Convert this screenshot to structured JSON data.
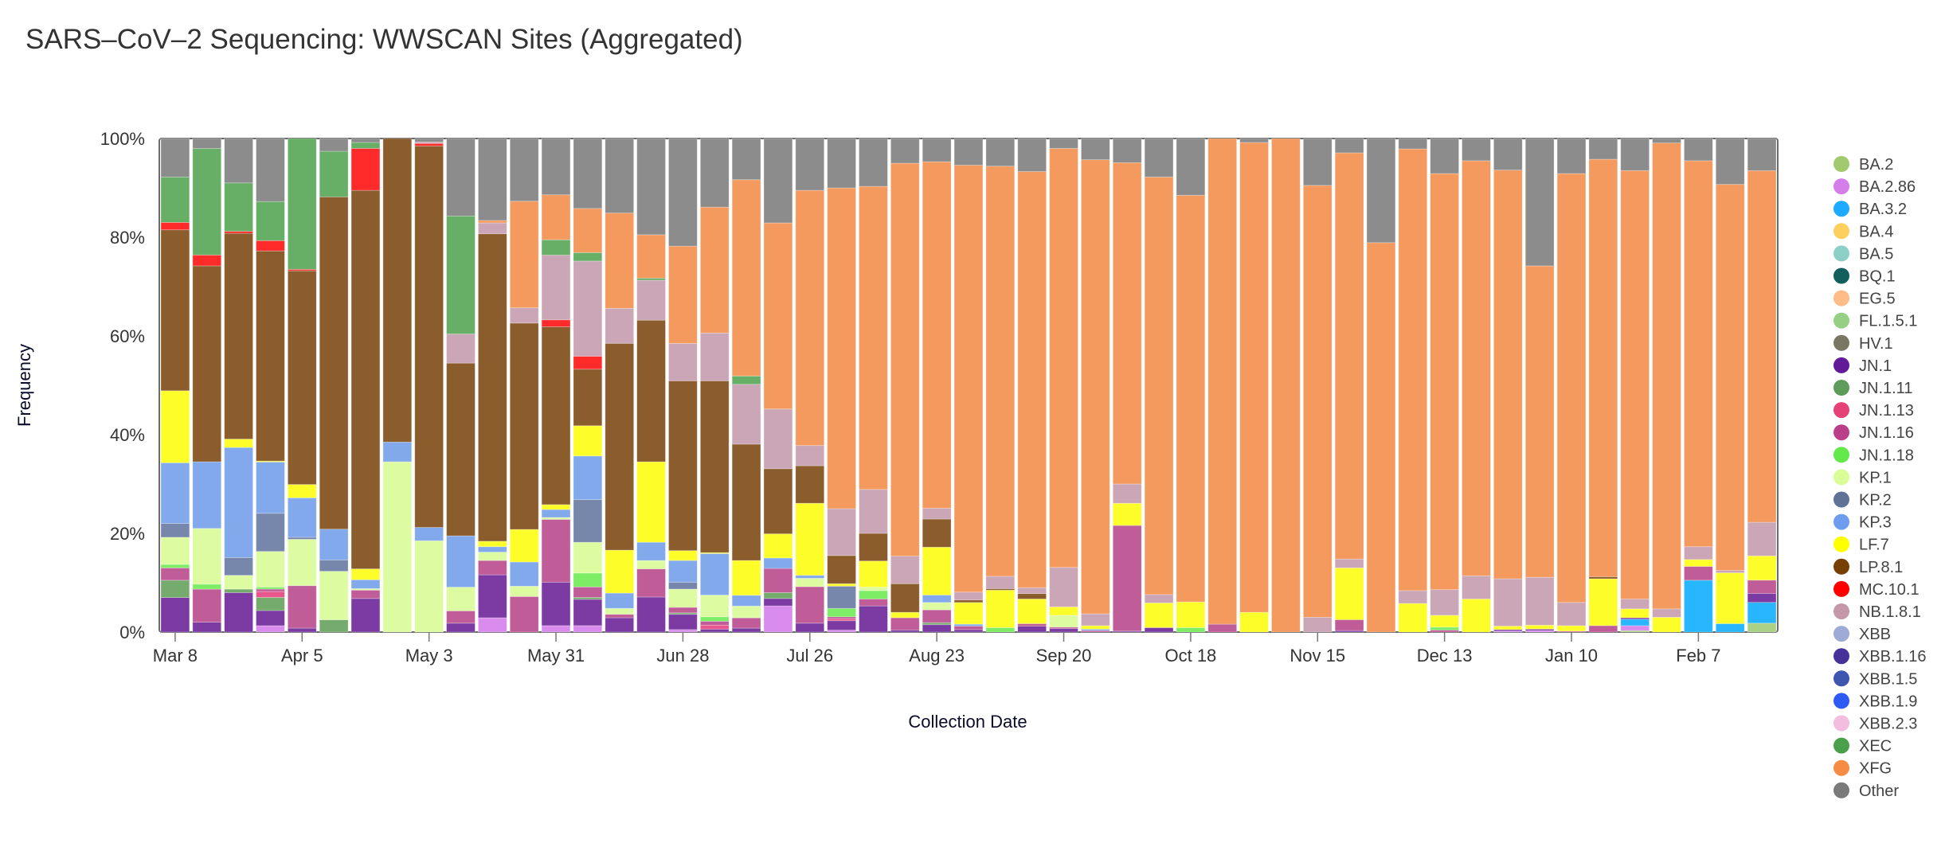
{
  "title": "SARS–CoV–2 Sequencing: WWSCAN Sites (Aggregated)",
  "chart_data": {
    "type": "bar",
    "stacked": true,
    "normalized": true,
    "title": "SARS–CoV–2 Sequencing: WWSCAN Sites (Aggregated)",
    "xlabel": "Collection Date",
    "ylabel": "Frequency",
    "ylim": [
      0,
      100
    ],
    "y_ticks": [
      "0%",
      "20%",
      "40%",
      "60%",
      "80%",
      "100%"
    ],
    "y_tick_values": [
      0,
      20,
      40,
      60,
      80,
      100
    ],
    "x_ticks": [
      "Mar 8",
      "Apr 5",
      "May 3",
      "May 31",
      "Jun 28",
      "Jul 26",
      "Aug 23",
      "Sep 20",
      "Oct 18",
      "Nov 15",
      "Dec 13",
      "Jan 10",
      "Feb 7"
    ],
    "x_tick_bar_index": [
      0,
      4,
      8,
      12,
      16,
      20,
      24,
      28,
      32,
      36,
      40,
      44,
      48
    ],
    "bar_count": 51,
    "legend_position": "right",
    "legend": [
      {
        "name": "BA.2",
        "color": "#a3c96e"
      },
      {
        "name": "BA.2.86",
        "color": "#d57eeb"
      },
      {
        "name": "BA.3.2",
        "color": "#1eaaff"
      },
      {
        "name": "BA.4",
        "color": "#fdd05e"
      },
      {
        "name": "BA.5",
        "color": "#8bcfc6"
      },
      {
        "name": "BQ.1",
        "color": "#135f5e"
      },
      {
        "name": "EG.5",
        "color": "#fdbb88"
      },
      {
        "name": "FL.1.5.1",
        "color": "#95d084"
      },
      {
        "name": "HV.1",
        "color": "#797764"
      },
      {
        "name": "JN.1",
        "color": "#631a99"
      },
      {
        "name": "JN.1.11",
        "color": "#5d9c59"
      },
      {
        "name": "JN.1.13",
        "color": "#e54378"
      },
      {
        "name": "JN.1.16",
        "color": "#b93f8a"
      },
      {
        "name": "JN.1.18",
        "color": "#63ea4a"
      },
      {
        "name": "KP.1",
        "color": "#dbfd97"
      },
      {
        "name": "KP.2",
        "color": "#5f7399"
      },
      {
        "name": "KP.3",
        "color": "#6e9def"
      },
      {
        "name": "LF.7",
        "color": "#ffff00"
      },
      {
        "name": "LP.8.1",
        "color": "#783f04"
      },
      {
        "name": "MC.10.1",
        "color": "#ff0000"
      },
      {
        "name": "NB.1.8.1",
        "color": "#c498a8"
      },
      {
        "name": "XBB",
        "color": "#9eabd6"
      },
      {
        "name": "XBB.1.16",
        "color": "#463199"
      },
      {
        "name": "XBB.1.5",
        "color": "#3f56b0"
      },
      {
        "name": "XBB.1.9",
        "color": "#2f5bf5"
      },
      {
        "name": "XBB.2.3",
        "color": "#f3bde0"
      },
      {
        "name": "XEC",
        "color": "#4aa04a"
      },
      {
        "name": "XFG",
        "color": "#f58b45"
      },
      {
        "name": "Other",
        "color": "#7a7a7a"
      }
    ],
    "bar_colors": {
      "BA.2": "#abd185",
      "BA.2.86": "#d98cee",
      "BA.3.2": "#27b6ff",
      "JN.1": "#7b3ba3",
      "JN.1.11": "#76ab6e",
      "JN.1.13": "#e8568c",
      "JN.1.16": "#c05c98",
      "JN.1.18": "#7ced64",
      "KP.1": "#ddfca2",
      "KP.2": "#7786ab",
      "KP.3": "#82a9eb",
      "LF.7": "#fdfd2a",
      "LP.8.1": "#8b5c2c",
      "MC.10.1": "#ff2b2b",
      "NB.1.8.1": "#cba6b7",
      "XEC": "#67ae66",
      "XFG": "#f59a5e",
      "Other": "#8c8c8c"
    },
    "series_order_bottom_to_top": [
      "BA.2",
      "BA.2.86",
      "BA.3.2",
      "JN.1",
      "JN.1.11",
      "JN.1.13",
      "JN.1.16",
      "JN.1.18",
      "KP.1",
      "KP.2",
      "KP.3",
      "LF.7",
      "LP.8.1",
      "MC.10.1",
      "NB.1.8.1",
      "XEC",
      "XFG",
      "Other"
    ],
    "bars": [
      {
        "JN.1": 7,
        "JN.1.11": 3.5,
        "JN.1.16": 2.5,
        "JN.1.18": 0.7,
        "KP.1": 5.5,
        "KP.2": 2.8,
        "KP.3": 12.3,
        "LF.7": 14.6,
        "LP.8.1": 32.6,
        "MC.10.1": 1.5,
        "XEC": 9.2,
        "Other": 7.8
      },
      {
        "JN.1": 2,
        "JN.1.16": 6.7,
        "JN.1.18": 1,
        "KP.1": 11.3,
        "KP.3": 13.5,
        "LP.8.1": 39.7,
        "MC.10.1": 2.2,
        "XEC": 21.6,
        "Other": 2
      },
      {
        "JN.1": 8,
        "JN.1.11": 0.7,
        "KP.1": 2.8,
        "KP.2": 3.6,
        "KP.3": 22.3,
        "LF.7": 1.7,
        "LP.8.1": 41.7,
        "MC.10.1": 0.4,
        "XEC": 9.8,
        "Other": 9
      },
      {
        "BA.2.86": 1.3,
        "JN.1": 3.1,
        "JN.1.11": 2.7,
        "JN.1.13": 1.2,
        "JN.1.16": 0.5,
        "JN.1.18": 0.4,
        "KP.1": 7.3,
        "KP.2": 7.8,
        "KP.3": 10.5,
        "LF.7": 0.2,
        "LP.8.1": 43,
        "MC.10.1": 2.1,
        "XEC": 8,
        "Other": 12.9
      },
      {
        "JN.1": 0.8,
        "JN.1.16": 8.6,
        "KP.1": 9.4,
        "KP.2": 0.4,
        "KP.3": 8,
        "LF.7": 2.7,
        "LP.8.1": 43.3,
        "MC.10.1": 0.3,
        "XEC": 26.5,
        "Other": 0
      },
      {
        "JN.1.11": 2.5,
        "KP.1": 9.9,
        "KP.2": 2.3,
        "KP.3": 6.3,
        "LP.8.1": 67.8,
        "XEC": 9.3,
        "Other": 2.6
      },
      {
        "JN.1": 6.8,
        "JN.1.16": 1.7,
        "KP.1": 0.3,
        "KP.3": 1.8,
        "LF.7": 2.2,
        "LP.8.1": 76.7,
        "MC.10.1": 8.5,
        "XEC": 1.2,
        "Other": 0.8
      },
      {
        "KP.1": 34.5,
        "KP.3": 4,
        "LP.8.1": 61.5
      },
      {
        "KP.1": 18.5,
        "KP.3": 2.7,
        "LP.8.1": 77.3,
        "MC.10.1": 0.5,
        "NB.1.8.1": 0.3,
        "Other": 0.7
      },
      {
        "JN.1": 1.8,
        "JN.1.16": 2.5,
        "KP.1": 4.8,
        "KP.3": 10.4,
        "LP.8.1": 35.0,
        "NB.1.8.1": 5.9,
        "XEC": 23.9,
        "Other": 15.7
      },
      {
        "BA.2.86": 2.9,
        "JN.1": 8.7,
        "JN.1.16": 2.9,
        "KP.1": 1.7,
        "KP.3": 1.1,
        "LF.7": 1.1,
        "LP.8.1": 62.3,
        "NB.1.8.1": 2.2,
        "XFG": 0.5,
        "Other": 16.6
      },
      {
        "JN.1.16": 7.2,
        "KP.1": 2.1,
        "KP.3": 4.9,
        "LF.7": 6.6,
        "LP.8.1": 41.8,
        "NB.1.8.1": 3.1,
        "XFG": 21.6,
        "Other": 12.7
      },
      {
        "BA.2.86": 1.3,
        "JN.1": 8.8,
        "JN.1.16": 12.7,
        "KP.1": 0.4,
        "KP.3": 1.6,
        "LF.7": 1.0,
        "LP.8.1": 36.0,
        "MC.10.1": 1.4,
        "NB.1.8.1": 13.1,
        "XEC": 3.1,
        "XFG": 9.1,
        "Other": 11.4
      },
      {
        "BA.2.86": 1.3,
        "JN.1": 5.3,
        "JN.1.11": 0.4,
        "JN.1.16": 2.1,
        "JN.1.18": 2.8,
        "KP.1": 6.2,
        "KP.2": 8.6,
        "KP.3": 8.8,
        "LF.7": 6.1,
        "LP.8.1": 11.4,
        "MC.10.1": 2.6,
        "NB.1.8.1": 19.2,
        "XEC": 1.7,
        "XFG": 8.9,
        "Other": 14.1
      },
      {
        "JN.1": 2.9,
        "JN.1.16": 0.7,
        "KP.1": 1.2,
        "KP.3": 3.1,
        "LF.7": 8.7,
        "LP.8.1": 41.9,
        "NB.1.8.1": 7.1,
        "XFG": 19.3,
        "Other": 15.1
      },
      {
        "JN.1": 7.1,
        "JN.1.16": 5.7,
        "KP.1": 1.7,
        "KP.3": 3.7,
        "LF.7": 16.3,
        "LP.8.1": 28.7,
        "NB.1.8.1": 8.1,
        "XEC": 0.4,
        "XFG": 8.8,
        "Other": 19.5
      },
      {
        "BA.2.86": 0.5,
        "JN.1": 3.1,
        "JN.1.11": 0.3,
        "JN.1.16": 1.1,
        "KP.1": 3.7,
        "KP.2": 1.4,
        "KP.3": 4.4,
        "LF.7": 2,
        "LP.8.1": 34.4,
        "NB.1.8.1": 7.6,
        "XFG": 19.7,
        "Other": 21.8
      },
      {
        "JN.1": 0.6,
        "JN.1.13": 0.8,
        "JN.1.16": 0.8,
        "JN.1.18": 0.9,
        "KP.1": 4.4,
        "KP.3": 8.4,
        "LF.7": 0.2,
        "LP.8.1": 34.8,
        "NB.1.8.1": 9.7,
        "XFG": 25.5,
        "Other": 13.9
      },
      {
        "JN.1": 0.8,
        "JN.1.16": 2.1,
        "KP.1": 2.4,
        "KP.3": 2.2,
        "LF.7": 7.1,
        "LP.8.1": 23.7,
        "NB.1.8.1": 12.2,
        "XEC": 1.7,
        "XFG": 40.0,
        "Other": 8.4
      },
      {
        "BA.2.86": 5.3,
        "JN.1": 1.5,
        "JN.1.11": 1.2,
        "JN.1.16": 4.9,
        "KP.3": 2.1,
        "LF.7": 4.9,
        "LP.8.1": 13.2,
        "NB.1.8.1": 12.1,
        "XFG": 37.7,
        "Other": 17.1
      },
      {
        "JN.1": 1.8,
        "JN.1.16": 7.4,
        "KP.1": 1.7,
        "KP.3": 0.6,
        "LF.7": 14.6,
        "LP.8.1": 7.6,
        "NB.1.8.1": 4.1,
        "XFG": 51.7,
        "Other": 10.5
      },
      {
        "BA.2.86": 0.4,
        "JN.1": 1.9,
        "JN.1.13": 0.4,
        "JN.1.16": 0.4,
        "JN.1.18": 1.7,
        "KP.2": 4.5,
        "LF.7": 0.5,
        "LP.8.1": 5.7,
        "NB.1.8.1": 9.5,
        "XFG": 65,
        "Other": 10
      },
      {
        "JN.1": 5.3,
        "JN.1.16": 1.4,
        "JN.1.18": 1.7,
        "KP.1": 0.7,
        "LF.7": 5.3,
        "LP.8.1": 5.6,
        "NB.1.8.1": 8.9,
        "XFG": 61.4,
        "Other": 9.7
      },
      {
        "JN.1": 0.4,
        "JN.1.16": 2.5,
        "LF.7": 1.1,
        "LP.8.1": 5.8,
        "NB.1.8.1": 5.6,
        "XFG": 79.6,
        "Other": 5.0
      },
      {
        "JN.1": 1.5,
        "JN.1.11": 0.4,
        "JN.1.16": 2.6,
        "KP.1": 1.5,
        "KP.3": 1.5,
        "LF.7": 9.7,
        "LP.8.1": 5.7,
        "NB.1.8.1": 2.2,
        "XFG": 70.2,
        "Other": 4.7
      },
      {
        "JN.1": 0.5,
        "JN.1.16": 0.7,
        "KP.3": 0.4,
        "LF.7": 4.4,
        "LP.8.1": 0.5,
        "NB.1.8.1": 1.6,
        "XFG": 86.5,
        "Other": 5.4
      },
      {
        "JN.1.18": 0.9,
        "LF.7": 7.6,
        "LP.8.1": 0.3,
        "NB.1.8.1": 2.5,
        "XFG": 83.1,
        "Other": 5.6
      },
      {
        "JN.1": 1.2,
        "JN.1.16": 0.5,
        "LF.7": 5.0,
        "LP.8.1": 1.1,
        "NB.1.8.1": 1.2,
        "XFG": 84.3,
        "Other": 6.7
      },
      {
        "JN.1": 0.7,
        "JN.1.16": 0.3,
        "KP.1": 2.4,
        "LF.7": 1.7,
        "NB.1.8.1": 8.0,
        "XFG": 84.9,
        "Other": 2.0
      },
      {
        "JN.1.16": 0.3,
        "KP.3": 0.3,
        "LF.7": 0.7,
        "NB.1.8.1": 2.4,
        "XFG": 92.0,
        "Other": 4.3
      },
      {
        "JN.1": 0.2,
        "JN.1.16": 21.4,
        "LF.7": 4.5,
        "NB.1.8.1": 3.9,
        "XFG": 65.1,
        "Other": 4.9
      },
      {
        "JN.1": 0.9,
        "NB.1.8.1": 1.7,
        "LF.7": 5.0,
        "XFG": 84.6,
        "Other": 7.8
      },
      {
        "JN.1.18": 0.9,
        "LF.7": 5.2,
        "XFG": 82.4,
        "Other": 11.5
      },
      {
        "JN.1.16": 1.6,
        "XFG": 98.4
      },
      {
        "LF.7": 4.0,
        "XFG": 95.2,
        "Other": 0.8
      },
      {
        "XFG": 100
      },
      {
        "NB.1.8.1": 3.0,
        "XFG": 87.5,
        "Other": 9.5
      },
      {
        "JN.1": 0.3,
        "JN.1.16": 2.2,
        "LF.7": 10.5,
        "NB.1.8.1": 1.8,
        "XFG": 82.3,
        "Other": 2.9
      },
      {
        "XFG": 78.9,
        "Other": 21.1
      },
      {
        "LF.7": 5.8,
        "NB.1.8.1": 2.6,
        "XFG": 89.5,
        "Other": 2.1
      },
      {
        "JN.1.16": 0.4,
        "JN.1.18": 0.6,
        "LF.7": 2.4,
        "NB.1.8.1": 5.2,
        "XFG": 84.3,
        "Other": 7.1
      },
      {
        "LF.7": 6.7,
        "NB.1.8.1": 4.7,
        "XFG": 84.1,
        "Other": 4.5
      },
      {
        "BA.2.86": 0.2,
        "JN.1": 0.3,
        "LF.7": 0.7,
        "NB.1.8.1": 9.6,
        "XFG": 82.8,
        "Other": 6.4
      },
      {
        "BA.2.86": 0.3,
        "JN.1": 0.3,
        "LF.7": 0.8,
        "NB.1.8.1": 9.7,
        "XFG": 63.1,
        "Other": 25.8
      },
      {
        "JN.1.16": 0.2,
        "LF.7": 1.1,
        "NB.1.8.1": 4.7,
        "XFG": 86.9,
        "Other": 7.1
      },
      {
        "JN.1.16": 1.3,
        "LF.7": 9.5,
        "LP.8.1": 0.4,
        "XFG": 84.6,
        "Other": 4.2
      },
      {
        "BA.2": 0.3,
        "BA.2.86": 1.0,
        "BA.3.2": 1.3,
        "JN.1": 0.3,
        "LF.7": 1.8,
        "NB.1.8.1": 2.0,
        "XFG": 86.8,
        "Other": 6.5
      },
      {
        "LF.7": 3.0,
        "NB.1.8.1": 1.7,
        "XFG": 94.4,
        "Other": 0.9
      },
      {
        "BA.3.2": 10.5,
        "JN.1.16": 2.8,
        "LF.7": 1.4,
        "NB.1.8.1": 2.6,
        "XFG": 78.2,
        "Other": 4.5
      },
      {
        "BA.3.2": 1.7,
        "LF.7": 10.3,
        "NB.1.8.1": 0.5,
        "XFG": 78.2,
        "Other": 9.3
      },
      {
        "BA.2": 1.8,
        "BA.3.2": 4.2,
        "JN.1": 1.8,
        "JN.1.16": 2.7,
        "LF.7": 4.9,
        "NB.1.8.1": 6.8,
        "XFG": 71.1,
        "Other": 6.5
      }
    ]
  }
}
